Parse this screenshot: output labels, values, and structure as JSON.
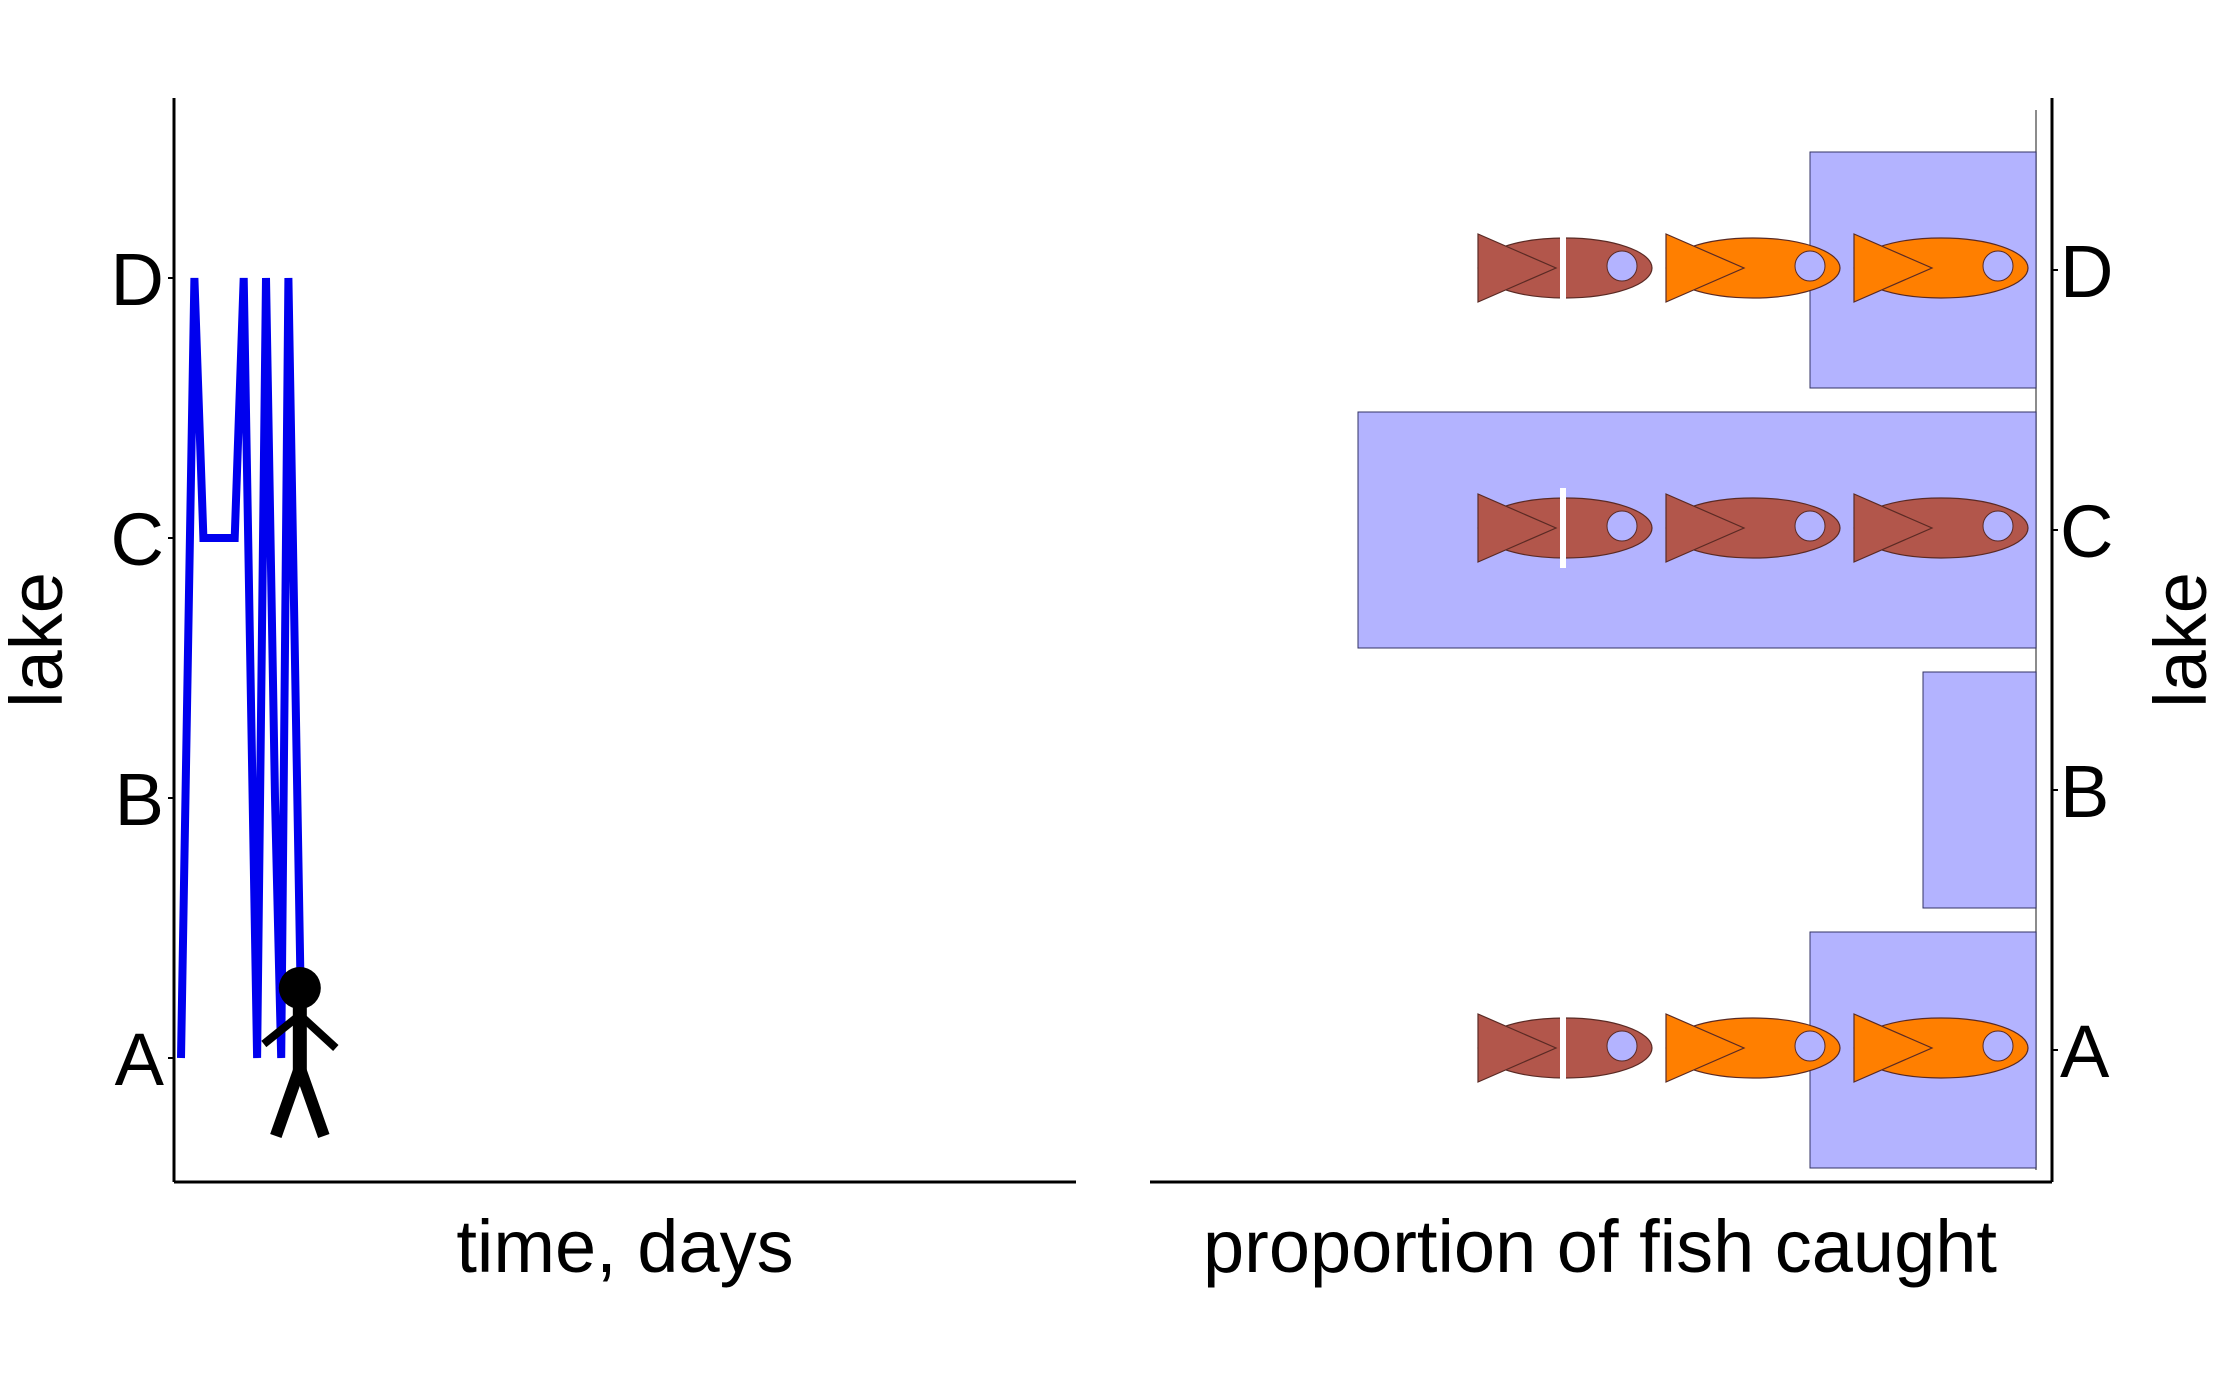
{
  "chart_data": [
    {
      "type": "line",
      "xlabel": "time, days",
      "ylabel": "lake",
      "y_categories": [
        "A",
        "B",
        "C",
        "D"
      ],
      "series": [
        {
          "points": [
            {
              "t": 0.0,
              "lake": "A"
            },
            {
              "t": 1.5,
              "lake": "D"
            },
            {
              "t": 2.5,
              "lake": "C"
            },
            {
              "t": 6.0,
              "lake": "C"
            },
            {
              "t": 7.0,
              "lake": "D"
            },
            {
              "t": 8.5,
              "lake": "A"
            },
            {
              "t": 9.5,
              "lake": "D"
            },
            {
              "t": 10.5,
              "lake": "B"
            },
            {
              "t": 11.2,
              "lake": "A"
            },
            {
              "t": 12.0,
              "lake": "D"
            },
            {
              "t": 13.5,
              "lake": "A"
            }
          ]
        }
      ],
      "xlim": [
        0,
        100
      ],
      "line_color": "#0000ee",
      "annotation_icon": "stick-figure-icon"
    },
    {
      "type": "bar",
      "orientation": "horizontal",
      "direction": "right-to-left",
      "xlabel": "proportion of fish caught",
      "ylabel": "lake",
      "categories": [
        "A",
        "B",
        "C",
        "D"
      ],
      "values": [
        0.25,
        0.125,
        0.75,
        0.25
      ],
      "xlim": [
        0,
        1
      ],
      "bar_color": "#b3b3ff",
      "fish_icons": [
        {
          "lake": "A",
          "colors": [
            "#ff7f00",
            "#ff7f00",
            "#b2564b"
          ]
        },
        {
          "lake": "C",
          "colors": [
            "#b2564b",
            "#b2564b",
            "#b2564b"
          ]
        },
        {
          "lake": "D",
          "colors": [
            "#ff7f00",
            "#ff7f00",
            "#b2564b"
          ]
        }
      ]
    }
  ]
}
